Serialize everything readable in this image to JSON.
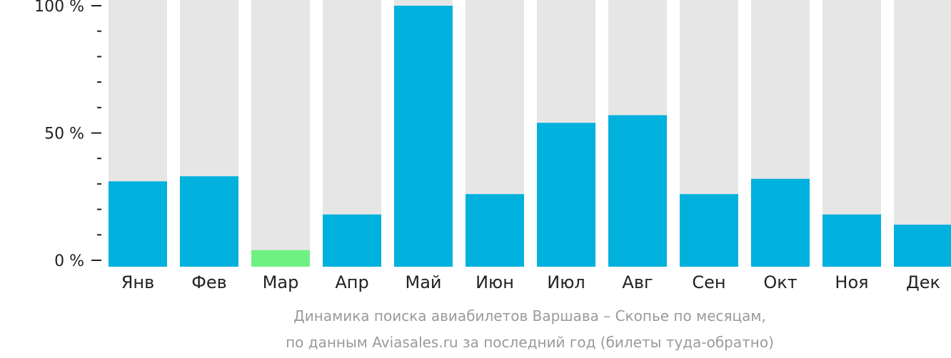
{
  "chart_data": {
    "type": "bar",
    "categories": [
      "Янв",
      "Фев",
      "Мар",
      "Апр",
      "Май",
      "Июн",
      "Июл",
      "Авг",
      "Сен",
      "Окт",
      "Ноя",
      "Дек"
    ],
    "values": [
      31,
      33,
      4,
      18,
      100,
      26,
      54,
      57,
      26,
      32,
      18,
      14
    ],
    "highlight_category": "Мар",
    "ylim": [
      0,
      100
    ],
    "y_ticks": [
      {
        "value": 100,
        "label": "100 %"
      },
      {
        "value": 50,
        "label": "50 %"
      },
      {
        "value": 0,
        "label": "0 %"
      }
    ],
    "y_minor_step": 10,
    "caption_lines": [
      "Динамика поиска авиабилетов Варшава – Скопье по месяцам,",
      "по данным Aviasales.ru за последний год (билеты туда-обратно)"
    ],
    "colors": {
      "bar": "#00b0dd",
      "highlight": "#6ff082",
      "background_bar": "#e6e6e6",
      "axis": "#222222",
      "caption": "#9a9a9a"
    }
  }
}
